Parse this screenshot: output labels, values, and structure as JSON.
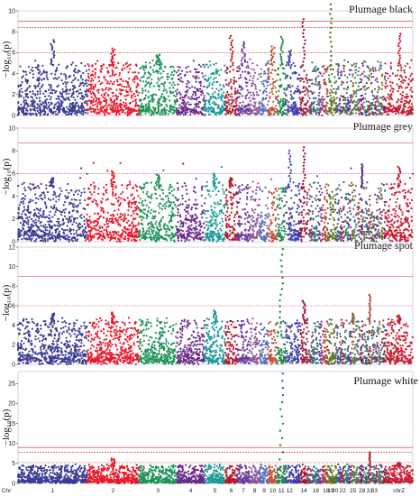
{
  "chart_data": {
    "type": "scatter",
    "ylabel": "−log₁₀(p)",
    "chromosomes": {
      "order": [
        "1",
        "2",
        "3",
        "4",
        "5",
        "6",
        "7",
        "8",
        "9",
        "10",
        "11",
        "12",
        "13",
        "14",
        "15",
        "16",
        "17",
        "18",
        "19",
        "20",
        "21",
        "22",
        "23",
        "24",
        "25",
        "26",
        "27",
        "28",
        "29",
        "30",
        "31",
        "32",
        "33",
        "34",
        "35",
        "36",
        "37",
        "38",
        "chrZ"
      ],
      "colors": [
        "#3c3c94",
        "#e8182a",
        "#22925a",
        "#6a2a8a",
        "#1a9898",
        "#b5182a",
        "#6a3c9a",
        "#8a5a9a",
        "#5a6ab5",
        "#c2553a",
        "#1f8a4a",
        "#4a4aa8",
        "#3a3ab0",
        "#a01830",
        "#7a4a6a",
        "#2a7a7a",
        "#8a3a8a",
        "#aa4a2a",
        "#4a7a2a",
        "#6a6a2a",
        "#3a5a9a",
        "#9a2a5a",
        "#2a8a5a",
        "#5a3a9a",
        "#8a6a2a",
        "#3a8a8a",
        "#9a4a4a",
        "#4a2a8a",
        "#7a7a3a",
        "#2a5a8a",
        "#a83a3a",
        "#3a7a4a",
        "#6a4a8a",
        "#8a2a7a",
        "#4a8a3a",
        "#5a5a9a",
        "#9a5a2a",
        "#3a3a7a",
        "#c81e32"
      ],
      "tick_labels": [
        "Chr",
        "1",
        "2",
        "3",
        "4",
        "5",
        "6",
        "7",
        "8",
        "9",
        "10",
        "11",
        "12",
        "14",
        "16",
        "18",
        "19",
        "20",
        "22",
        "25",
        "28",
        "31",
        "33",
        "chrZ"
      ]
    },
    "panels": [
      {
        "title": "Plumage black",
        "ylim": [
          0,
          10
        ],
        "yticks": [
          0,
          2,
          4,
          6,
          8,
          10
        ],
        "thresholds": [
          9.0,
          8.4,
          6.0
        ],
        "peaks": [
          {
            "chr": "1",
            "value": 7.2
          },
          {
            "chr": "2",
            "value": 6.4
          },
          {
            "chr": "3",
            "value": 5.8
          },
          {
            "chr": "6",
            "value": 7.6
          },
          {
            "chr": "7",
            "value": 7.0
          },
          {
            "chr": "10",
            "value": 6.6
          },
          {
            "chr": "11",
            "value": 7.5
          },
          {
            "chr": "12",
            "value": 6.2
          },
          {
            "chr": "14",
            "value": 9.2
          },
          {
            "chr": "19",
            "value": 10.6
          },
          {
            "chr": "chrZ",
            "value": 7.8
          }
        ]
      },
      {
        "title": "Plumage grey",
        "ylim": [
          0,
          10
        ],
        "yticks": [
          0,
          2,
          4,
          6,
          8,
          10
        ],
        "thresholds": [
          8.7,
          6.0
        ],
        "peaks": [
          {
            "chr": "1",
            "value": 5.6
          },
          {
            "chr": "2",
            "value": 6.2
          },
          {
            "chr": "3",
            "value": 5.9
          },
          {
            "chr": "5",
            "value": 6.0
          },
          {
            "chr": "6",
            "value": 5.6
          },
          {
            "chr": "12",
            "value": 8.0
          },
          {
            "chr": "14",
            "value": 8.3
          },
          {
            "chr": "28",
            "value": 6.8
          },
          {
            "chr": "chrZ",
            "value": 6.6
          }
        ]
      },
      {
        "title": "Plumage spot",
        "ylim": [
          0,
          12
        ],
        "yticks": [
          0,
          2,
          4,
          6,
          8,
          10,
          12
        ],
        "thresholds": [
          9.0,
          6.0
        ],
        "peaks": [
          {
            "chr": "1",
            "value": 5.2
          },
          {
            "chr": "2",
            "value": 5.3
          },
          {
            "chr": "5",
            "value": 5.5
          },
          {
            "chr": "11",
            "value": 11.8
          },
          {
            "chr": "14",
            "value": 6.5
          },
          {
            "chr": "25",
            "value": 5.2
          },
          {
            "chr": "31",
            "value": 7.1
          },
          {
            "chr": "chrZ",
            "value": 5.0
          }
        ]
      },
      {
        "title": "Plumage white",
        "ylim": [
          0,
          28
        ],
        "yticks": [
          0,
          5,
          10,
          15,
          20,
          25
        ],
        "thresholds": [
          9.0,
          7.8,
          5.2
        ],
        "peaks": [
          {
            "chr": "2",
            "value": 6.2
          },
          {
            "chr": "11",
            "value": 27.5
          },
          {
            "chr": "31",
            "value": 7.8
          },
          {
            "chr": "chrZ",
            "value": 5.2
          }
        ]
      }
    ]
  }
}
